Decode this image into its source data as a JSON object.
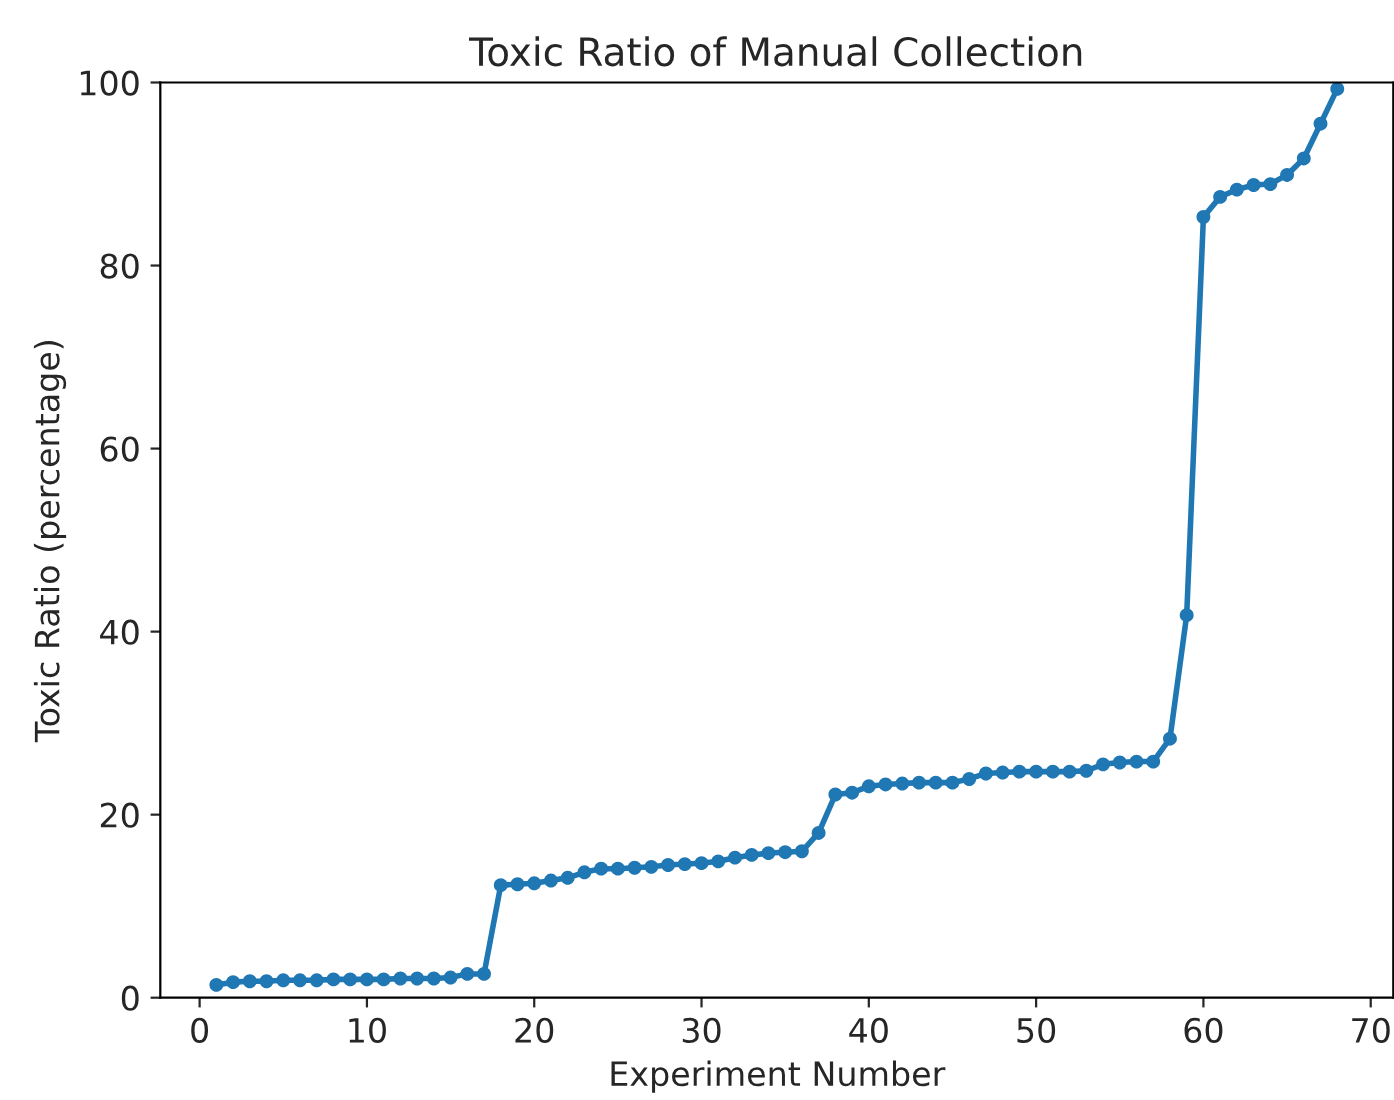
{
  "chart_data": {
    "type": "line",
    "title": "Toxic Ratio of Manual Collection",
    "xlabel": "Experiment Number",
    "ylabel": "Toxic Ratio (percentage)",
    "x": [
      1,
      2,
      3,
      4,
      5,
      6,
      7,
      8,
      9,
      10,
      11,
      12,
      13,
      14,
      15,
      16,
      17,
      18,
      19,
      20,
      21,
      22,
      23,
      24,
      25,
      26,
      27,
      28,
      29,
      30,
      31,
      32,
      33,
      34,
      35,
      36,
      37,
      38,
      39,
      40,
      41,
      42,
      43,
      44,
      45,
      46,
      47,
      48,
      49,
      50,
      51,
      52,
      53,
      54,
      55,
      56,
      57,
      58,
      59,
      60,
      61,
      62,
      63,
      64,
      65,
      66,
      67,
      68
    ],
    "series": [
      {
        "color": "#1f77b4",
        "values": [
          1.4,
          1.7,
          1.8,
          1.8,
          1.9,
          1.9,
          1.9,
          2.0,
          2.0,
          2.0,
          2.0,
          2.1,
          2.1,
          2.1,
          2.2,
          2.6,
          2.6,
          12.3,
          12.4,
          12.5,
          12.8,
          13.1,
          13.7,
          14.1,
          14.1,
          14.2,
          14.3,
          14.5,
          14.6,
          14.7,
          14.9,
          15.3,
          15.6,
          15.8,
          15.9,
          16.0,
          18.0,
          22.2,
          22.4,
          23.1,
          23.3,
          23.4,
          23.5,
          23.5,
          23.5,
          23.9,
          24.5,
          24.6,
          24.7,
          24.7,
          24.7,
          24.7,
          24.8,
          25.5,
          25.7,
          25.8,
          25.8,
          28.3,
          41.8,
          85.3,
          87.5,
          88.3,
          88.8,
          88.9,
          89.9,
          91.7,
          95.5,
          99.3
        ]
      }
    ],
    "xlim": [
      -2.35,
      71.35
    ],
    "ylim": [
      0,
      100
    ],
    "xticks": [
      0,
      10,
      20,
      30,
      40,
      50,
      60,
      70
    ],
    "yticks": [
      0,
      20,
      40,
      60,
      80,
      100
    ],
    "marker": "circle",
    "line_style": "solid",
    "grid": false,
    "legend": false
  }
}
